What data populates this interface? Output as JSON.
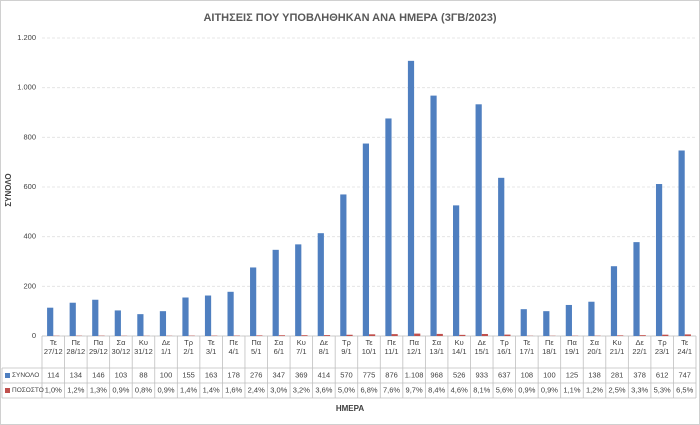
{
  "chart_data": {
    "type": "bar",
    "title": "ΑΙΤΗΣΕΙΣ ΠΟΥ ΥΠΟΒΛΗΘΗΚΑΝ ΑΝΑ ΗΜΕΡΑ (3ΓΒ/2023)",
    "x_label": "ΗΜΕΡΑ",
    "y_label": "ΣΥΝΟΛΟ",
    "categories": [
      "Τε 27/12",
      "Πε 28/12",
      "Πα 29/12",
      "Σα 30/12",
      "Κυ 31/12",
      "Δε 1/1",
      "Τρ 2/1",
      "Τε 3/1",
      "Πε 4/1",
      "Πα 5/1",
      "Σα 6/1",
      "Κυ 7/1",
      "Δε 8/1",
      "Τρ 9/1",
      "Τε 10/1",
      "Πε 11/1",
      "Πα 12/1",
      "Σα 13/1",
      "Κυ 14/1",
      "Δε 15/1",
      "Τρ 16/1",
      "Τε 17/1",
      "Πε 18/1",
      "Πα 19/1",
      "Σα 20/1",
      "Κυ 21/1",
      "Δε 22/1",
      "Τρ 23/1",
      "Τε 24/1"
    ],
    "series": [
      {
        "name": "ΣΥΝΟΛΟ",
        "color": "#4f7fc0",
        "values": [
          114,
          134,
          146,
          103,
          88,
          100,
          155,
          163,
          178,
          276,
          347,
          369,
          414,
          570,
          775,
          876,
          1108,
          968,
          526,
          933,
          637,
          108,
          100,
          125,
          138,
          281,
          378,
          612,
          747
        ],
        "value_labels": [
          "114",
          "134",
          "146",
          "103",
          "88",
          "100",
          "155",
          "163",
          "178",
          "276",
          "347",
          "369",
          "414",
          "570",
          "775",
          "876",
          "1.108",
          "968",
          "526",
          "933",
          "637",
          "108",
          "100",
          "125",
          "138",
          "281",
          "378",
          "612",
          "747"
        ]
      },
      {
        "name": "ΠΟΣΟΣΤΟ",
        "color": "#c0504d",
        "values": [
          1.0,
          1.2,
          1.3,
          0.9,
          0.8,
          0.9,
          1.4,
          1.4,
          1.6,
          2.4,
          3.0,
          3.2,
          3.6,
          5.0,
          6.8,
          7.6,
          9.7,
          8.4,
          4.6,
          8.1,
          5.6,
          0.9,
          0.9,
          1.1,
          1.2,
          2.5,
          3.3,
          5.3,
          6.5
        ],
        "value_labels": [
          "1,0%",
          "1,2%",
          "1,3%",
          "0,9%",
          "0,8%",
          "0,9%",
          "1,4%",
          "1,4%",
          "1,6%",
          "2,4%",
          "3,0%",
          "3,2%",
          "3,6%",
          "5,0%",
          "6,8%",
          "7,6%",
          "9,7%",
          "8,4%",
          "4,6%",
          "8,1%",
          "5,6%",
          "0,9%",
          "0,9%",
          "1,1%",
          "1,2%",
          "2,5%",
          "3,3%",
          "5,3%",
          "6,5%"
        ]
      }
    ],
    "ylim": [
      0,
      1200
    ],
    "yticks": [
      0,
      200,
      400,
      600,
      800,
      {
        "value": 1000,
        "label": "1.000"
      },
      {
        "value": 1200,
        "label": "1.200"
      }
    ],
    "grid": true
  }
}
